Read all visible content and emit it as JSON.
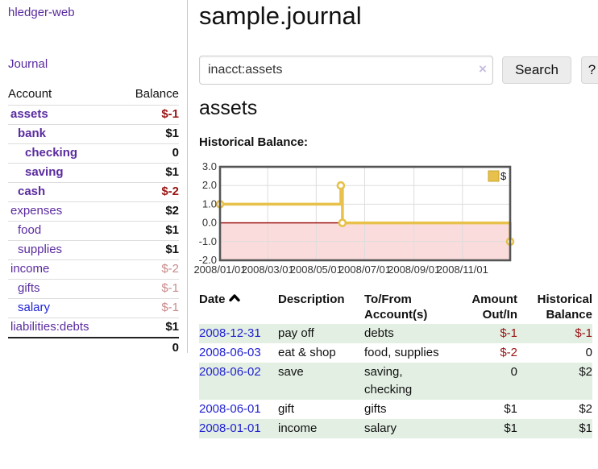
{
  "app": {
    "brand": "hledger-web",
    "nav_journal": "Journal"
  },
  "sidebar": {
    "header": {
      "account": "Account",
      "balance": "Balance"
    },
    "accounts": [
      {
        "name": "assets",
        "indent": 1,
        "bold": true,
        "link": "purple",
        "balance": "$-1",
        "balance_style": "neg"
      },
      {
        "name": "bank",
        "indent": 2,
        "bold": true,
        "link": "purple",
        "balance": "$1",
        "balance_style": "pos"
      },
      {
        "name": "checking",
        "indent": 3,
        "bold": true,
        "link": "purple",
        "balance": "0",
        "balance_style": "pos"
      },
      {
        "name": "saving",
        "indent": 3,
        "bold": true,
        "link": "purple",
        "balance": "$1",
        "balance_style": "pos"
      },
      {
        "name": "cash",
        "indent": 2,
        "bold": true,
        "link": "purple",
        "balance": "$-2",
        "balance_style": "neg"
      },
      {
        "name": "expenses",
        "indent": 1,
        "bold": false,
        "link": "purple",
        "balance": "$2",
        "balance_style": "pos"
      },
      {
        "name": "food",
        "indent": 2,
        "bold": false,
        "link": "purple",
        "balance": "$1",
        "balance_style": "pos"
      },
      {
        "name": "supplies",
        "indent": 2,
        "bold": false,
        "link": "purple",
        "balance": "$1",
        "balance_style": "pos"
      },
      {
        "name": "income",
        "indent": 1,
        "bold": false,
        "link": "purple",
        "balance": "$-2",
        "balance_style": "negdim"
      },
      {
        "name": "gifts",
        "indent": 2,
        "bold": false,
        "link": "purple",
        "balance": "$-1",
        "balance_style": "negdim"
      },
      {
        "name": "salary",
        "indent": 2,
        "bold": false,
        "link": "blue",
        "balance": "$-1",
        "balance_style": "negdim"
      },
      {
        "name": "liabilities:debts",
        "indent": 1,
        "bold": false,
        "link": "purple",
        "balance": "$1",
        "balance_style": "pos"
      }
    ],
    "total": "0"
  },
  "header": {
    "title": "sample.journal"
  },
  "search": {
    "value": "inacct:assets",
    "clear_icon": "×",
    "button_label": "Search",
    "help_label": "?"
  },
  "account_page": {
    "heading": "assets",
    "chart_label": "Historical Balance:"
  },
  "chart_data": {
    "type": "line",
    "step": true,
    "title": "Historical Balance:",
    "legend": {
      "label": "$",
      "position": "top-right"
    },
    "series": [
      {
        "name": "$",
        "color": "#e7c14b",
        "points": [
          {
            "date": "2008-01-01",
            "value": 1
          },
          {
            "date": "2008-06-01",
            "value": 2
          },
          {
            "date": "2008-06-03",
            "value": 0
          },
          {
            "date": "2008-12-31",
            "value": -1
          }
        ]
      }
    ],
    "xlim": [
      "2008-01-01",
      "2008-12-31"
    ],
    "ylim": [
      -2,
      3
    ],
    "yticks": [
      {
        "v": 3,
        "label": "3.0"
      },
      {
        "v": 2,
        "label": "2.0"
      },
      {
        "v": 1,
        "label": "1.0"
      },
      {
        "v": 0,
        "label": "0.0"
      },
      {
        "v": -1,
        "label": "-1.0"
      },
      {
        "v": -2,
        "label": "-2.0"
      }
    ],
    "xticks": [
      {
        "date": "2008-01-01",
        "label": "2008/01/01"
      },
      {
        "date": "2008-03-01",
        "label": "2008/03/01"
      },
      {
        "date": "2008-05-01",
        "label": "2008/05/01"
      },
      {
        "date": "2008-07-01",
        "label": "2008/07/01"
      },
      {
        "date": "2008-09-01",
        "label": "2008/09/01"
      },
      {
        "date": "2008-11-01",
        "label": "2008/11/01"
      }
    ],
    "grid": true,
    "negative_region_color": "#fbdcdc",
    "zero_line_color": "#990000",
    "border_color": "#555555",
    "grid_color": "#dddddd"
  },
  "register": {
    "columns": [
      {
        "label": "Date",
        "align": "left",
        "sorted_asc": true
      },
      {
        "label": "Description",
        "align": "left"
      },
      {
        "label": "To/From Account(s)",
        "align": "left"
      },
      {
        "label": "Amount Out/In",
        "align": "right"
      },
      {
        "label": "Historical Balance",
        "align": "right"
      }
    ],
    "rows": [
      {
        "date": "2008-12-31",
        "description": "pay off",
        "accounts": "debts",
        "amount": "$-1",
        "amount_neg": true,
        "balance": "$-1",
        "balance_neg": true
      },
      {
        "date": "2008-06-03",
        "description": "eat & shop",
        "accounts": "food, supplies",
        "amount": "$-2",
        "amount_neg": true,
        "balance": "0",
        "balance_neg": false
      },
      {
        "date": "2008-06-02",
        "description": "save",
        "accounts": "saving, checking",
        "amount": "0",
        "amount_neg": false,
        "balance": "$2",
        "balance_neg": false
      },
      {
        "date": "2008-06-01",
        "description": "gift",
        "accounts": "gifts",
        "amount": "$1",
        "amount_neg": false,
        "balance": "$2",
        "balance_neg": false
      },
      {
        "date": "2008-01-01",
        "description": "income",
        "accounts": "salary",
        "amount": "$1",
        "amount_neg": false,
        "balance": "$1",
        "balance_neg": false
      }
    ]
  }
}
